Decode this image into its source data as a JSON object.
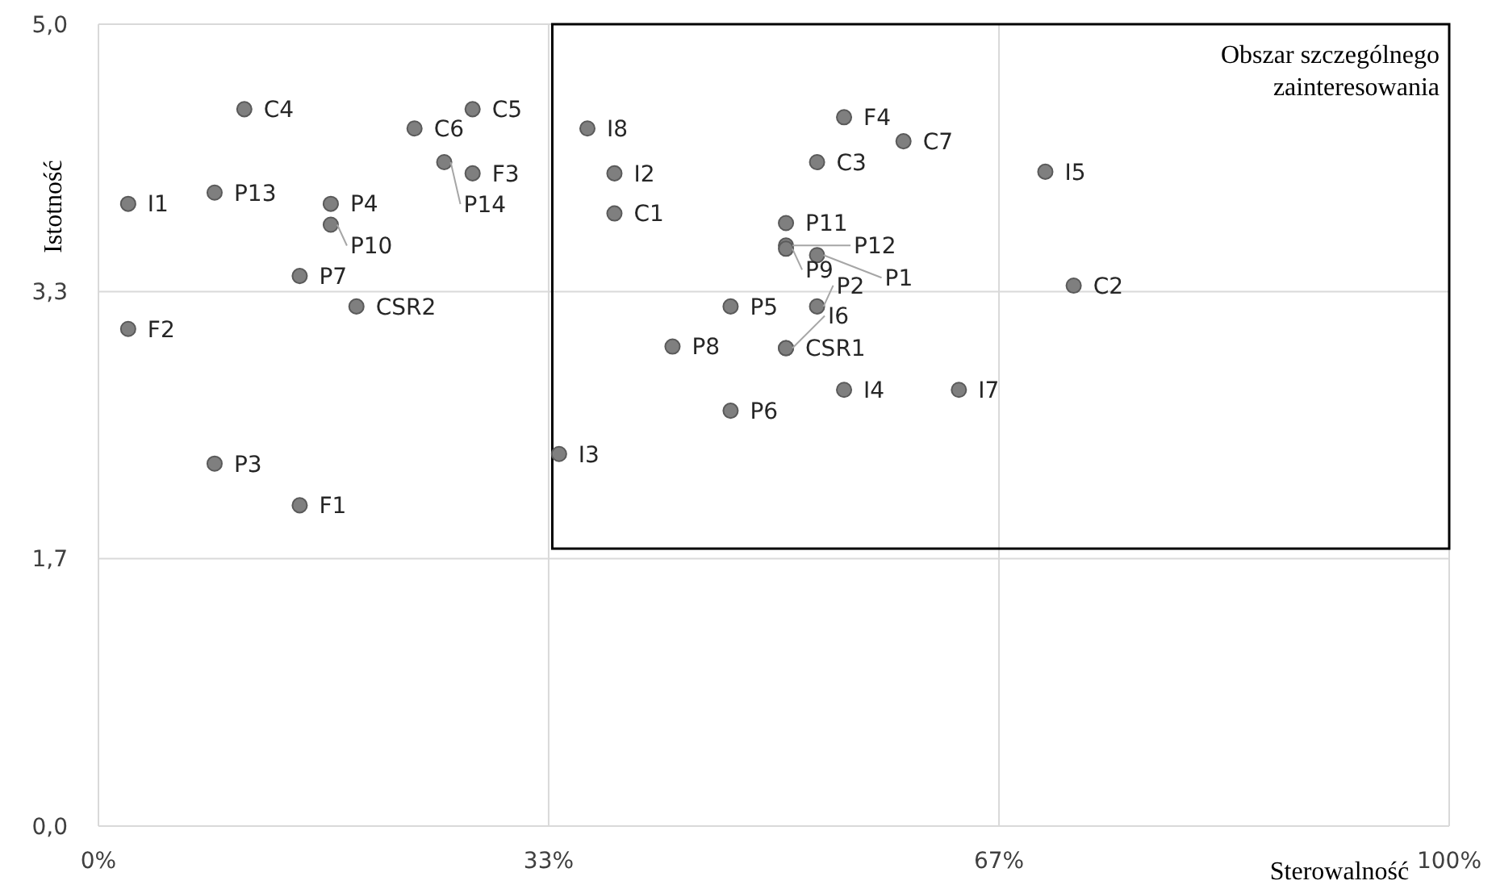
{
  "chart_data": {
    "type": "scatter",
    "xlabel": "Sterowalność",
    "ylabel": "Istotność",
    "annotations": [
      "Obszar szczególnego zainteresowania"
    ],
    "xlim": [
      0,
      100
    ],
    "ylim": [
      0,
      5
    ],
    "xticks": [
      {
        "value": 0,
        "label": "0%"
      },
      {
        "value": 33.33,
        "label": "33%"
      },
      {
        "value": 66.67,
        "label": "67%"
      },
      {
        "value": 100,
        "label": "100%"
      }
    ],
    "yticks": [
      {
        "value": 0,
        "label": "0,0"
      },
      {
        "value": 1.667,
        "label": "1,7"
      },
      {
        "value": 3.333,
        "label": "3,3"
      },
      {
        "value": 5,
        "label": "5,0"
      }
    ],
    "grid": true,
    "marker": "circle",
    "series": [
      {
        "color": "#7f7f7f",
        "x": [
          10.8,
          23.4,
          27.7,
          36.2,
          27.7,
          25.6,
          38.2,
          38.2,
          2.2,
          8.6,
          17.2,
          17.2,
          14.9,
          19.1,
          2.2,
          8.6,
          14.9,
          34.1,
          42.5,
          46.8,
          50.9,
          50.9,
          46.8,
          55.2,
          63.7,
          53.2,
          50.9,
          50.9,
          50.9,
          53.2,
          53.2,
          55.2,
          59.6,
          70.1,
          72.2
        ],
        "values": [
          4.47,
          4.35,
          4.47,
          4.35,
          4.07,
          4.14,
          4.07,
          3.82,
          3.88,
          3.95,
          3.88,
          3.75,
          3.43,
          3.24,
          3.1,
          2.26,
          2.0,
          2.32,
          2.99,
          3.24,
          2.98,
          2.98,
          2.59,
          2.72,
          2.72,
          3.24,
          3.76,
          3.62,
          3.6,
          3.56,
          4.14,
          4.42,
          4.27,
          4.08,
          3.37
        ],
        "value_labels": [
          "C4",
          "C6",
          "C5",
          "I8",
          "F3",
          "P14",
          "I2",
          "C1",
          "I1",
          "P13",
          "P4",
          "P10",
          "P7",
          "CSR2",
          "F2",
          "P3",
          "F1",
          "I3",
          "P8",
          "P5",
          "CSR1",
          "I6",
          "P6",
          "I4",
          "I7",
          "P2",
          "P11",
          "P12",
          "P9",
          "P1",
          "C3",
          "F4",
          "C7",
          "I5",
          "C2"
        ]
      }
    ]
  }
}
